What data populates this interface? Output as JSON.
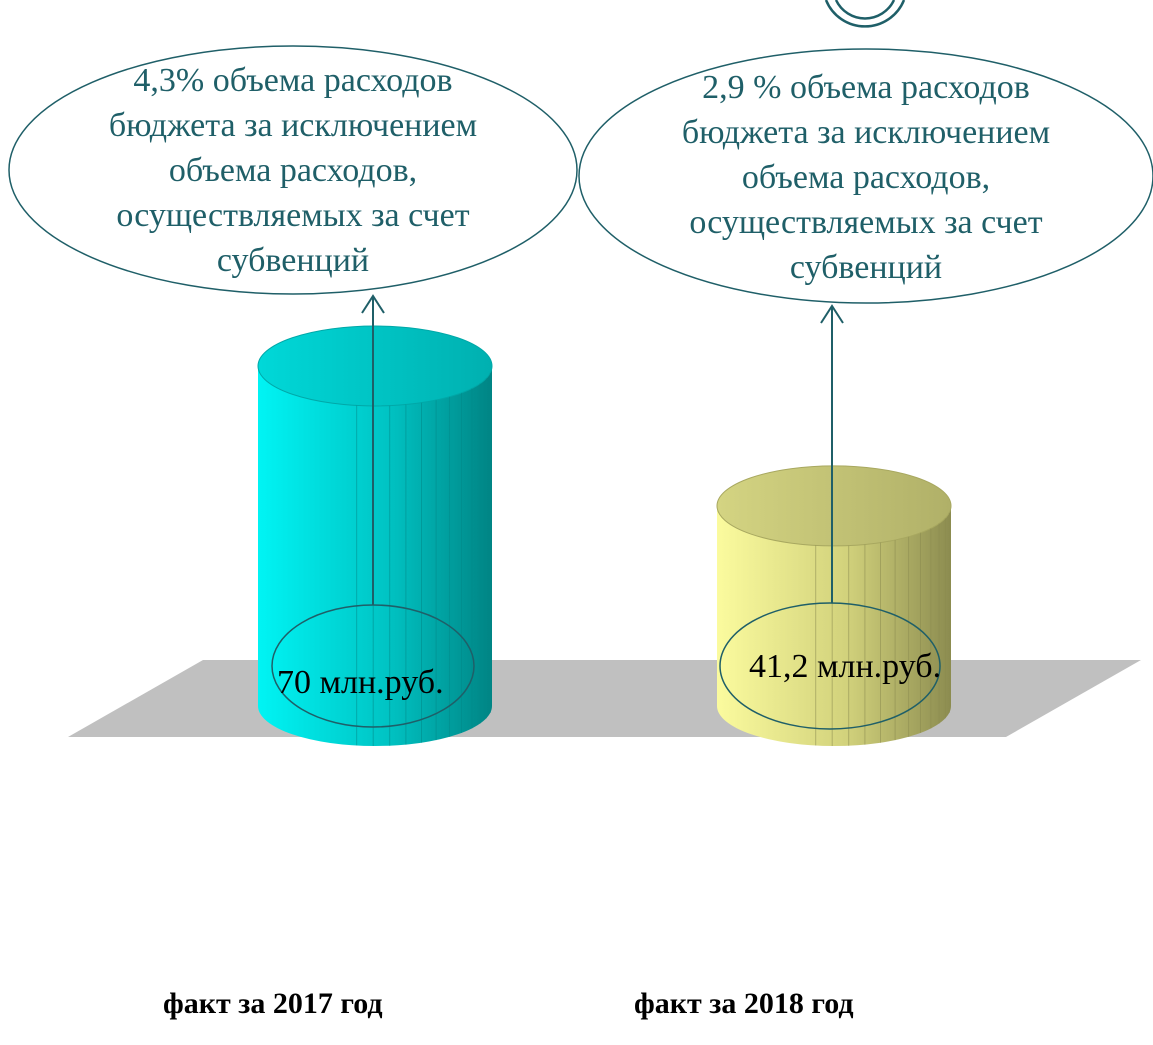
{
  "chart_data": {
    "type": "bar",
    "categories": [
      "факт за 2017 год",
      "факт за 2018 год"
    ],
    "series": [
      {
        "values": [
          70,
          41.2
        ]
      }
    ],
    "value_labels": [
      "70 млн.руб.",
      "41,2 млн.руб."
    ],
    "callouts": [
      [
        "4,3% объема расходов",
        "бюджета за исключением",
        "объема расходов,",
        "осуществляемых за счет",
        "субвенций"
      ],
      [
        "2,9 % объема расходов",
        "бюджета за исключением",
        "объема расходов,",
        "осуществляемых за счет",
        "субвенций"
      ]
    ],
    "colors": [
      "#00c8c8",
      "#e6e68c"
    ],
    "floor_color": "#c0c0c0",
    "accent_color": "#1f5f68"
  }
}
